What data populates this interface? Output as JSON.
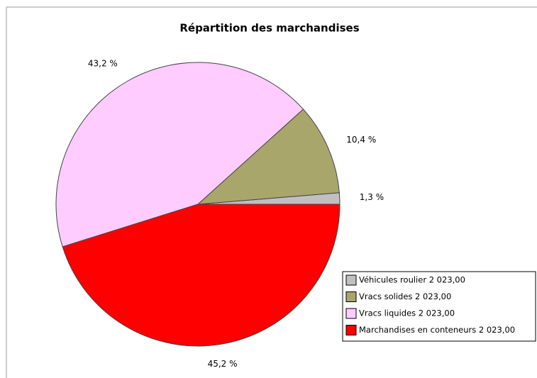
{
  "chart_data": {
    "type": "pie",
    "title": "Répartition des marchandises",
    "categories": [
      "Véhicules roulier 2 023,00",
      "Vracs solides 2 023,00",
      "Vracs liquides 2 023,00",
      "Marchandises en conteneurs 2 023,00"
    ],
    "values": [
      1.3,
      10.4,
      43.2,
      45.2
    ],
    "value_labels": [
      "1,3 %",
      "10,4 %",
      "43,2 %",
      "45,2 %"
    ],
    "colors": [
      "#c0c0c0",
      "#a9a66c",
      "#ffccff",
      "#ff0000"
    ],
    "legend": "lower right"
  }
}
